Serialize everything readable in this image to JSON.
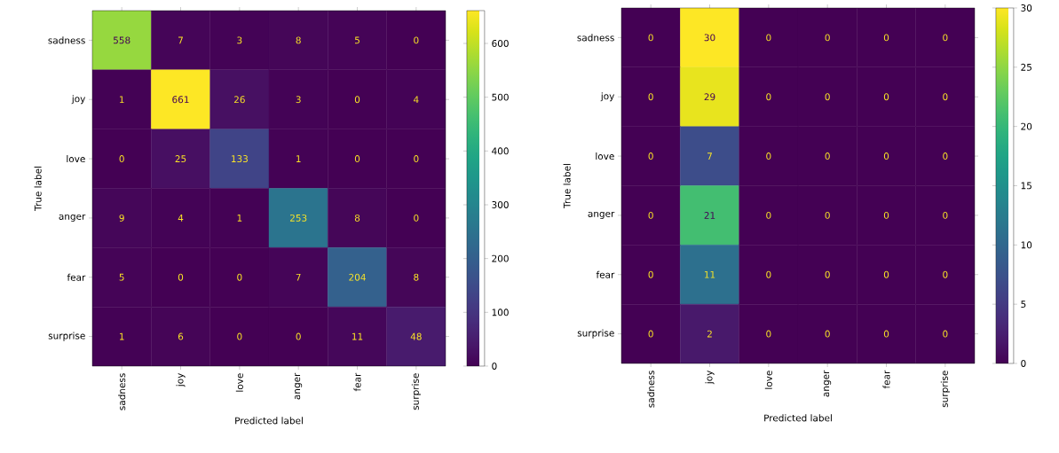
{
  "chart_data": [
    {
      "type": "heatmap",
      "xlabel": "Predicted label",
      "ylabel": "True label",
      "categories": [
        "sadness",
        "joy",
        "love",
        "anger",
        "fear",
        "surprise"
      ],
      "y_categories": [
        "sadness",
        "joy",
        "love",
        "anger",
        "fear",
        "surprise"
      ],
      "cells": [
        [
          558,
          7,
          3,
          8,
          5,
          0
        ],
        [
          1,
          661,
          26,
          3,
          0,
          4
        ],
        [
          0,
          25,
          133,
          1,
          0,
          0
        ],
        [
          9,
          4,
          1,
          253,
          8,
          0
        ],
        [
          5,
          0,
          0,
          7,
          204,
          8
        ],
        [
          1,
          6,
          0,
          0,
          11,
          48
        ]
      ],
      "clim": [
        0,
        661
      ],
      "cticks": [
        0,
        100,
        200,
        300,
        400,
        500,
        600
      ],
      "data_labels": true
    },
    {
      "type": "heatmap",
      "xlabel": "Predicted label",
      "ylabel": "True label",
      "categories": [
        "sadness",
        "joy",
        "love",
        "anger",
        "fear",
        "surprise"
      ],
      "y_categories": [
        "sadness",
        "joy",
        "love",
        "anger",
        "fear",
        "surprise"
      ],
      "cells": [
        [
          0,
          30,
          0,
          0,
          0,
          0
        ],
        [
          0,
          29,
          0,
          0,
          0,
          0
        ],
        [
          0,
          7,
          0,
          0,
          0,
          0
        ],
        [
          0,
          21,
          0,
          0,
          0,
          0
        ],
        [
          0,
          11,
          0,
          0,
          0,
          0
        ],
        [
          0,
          2,
          0,
          0,
          0,
          0
        ]
      ],
      "clim": [
        0,
        30
      ],
      "cticks": [
        0,
        5,
        10,
        15,
        20,
        25,
        30
      ],
      "data_labels": true
    }
  ]
}
